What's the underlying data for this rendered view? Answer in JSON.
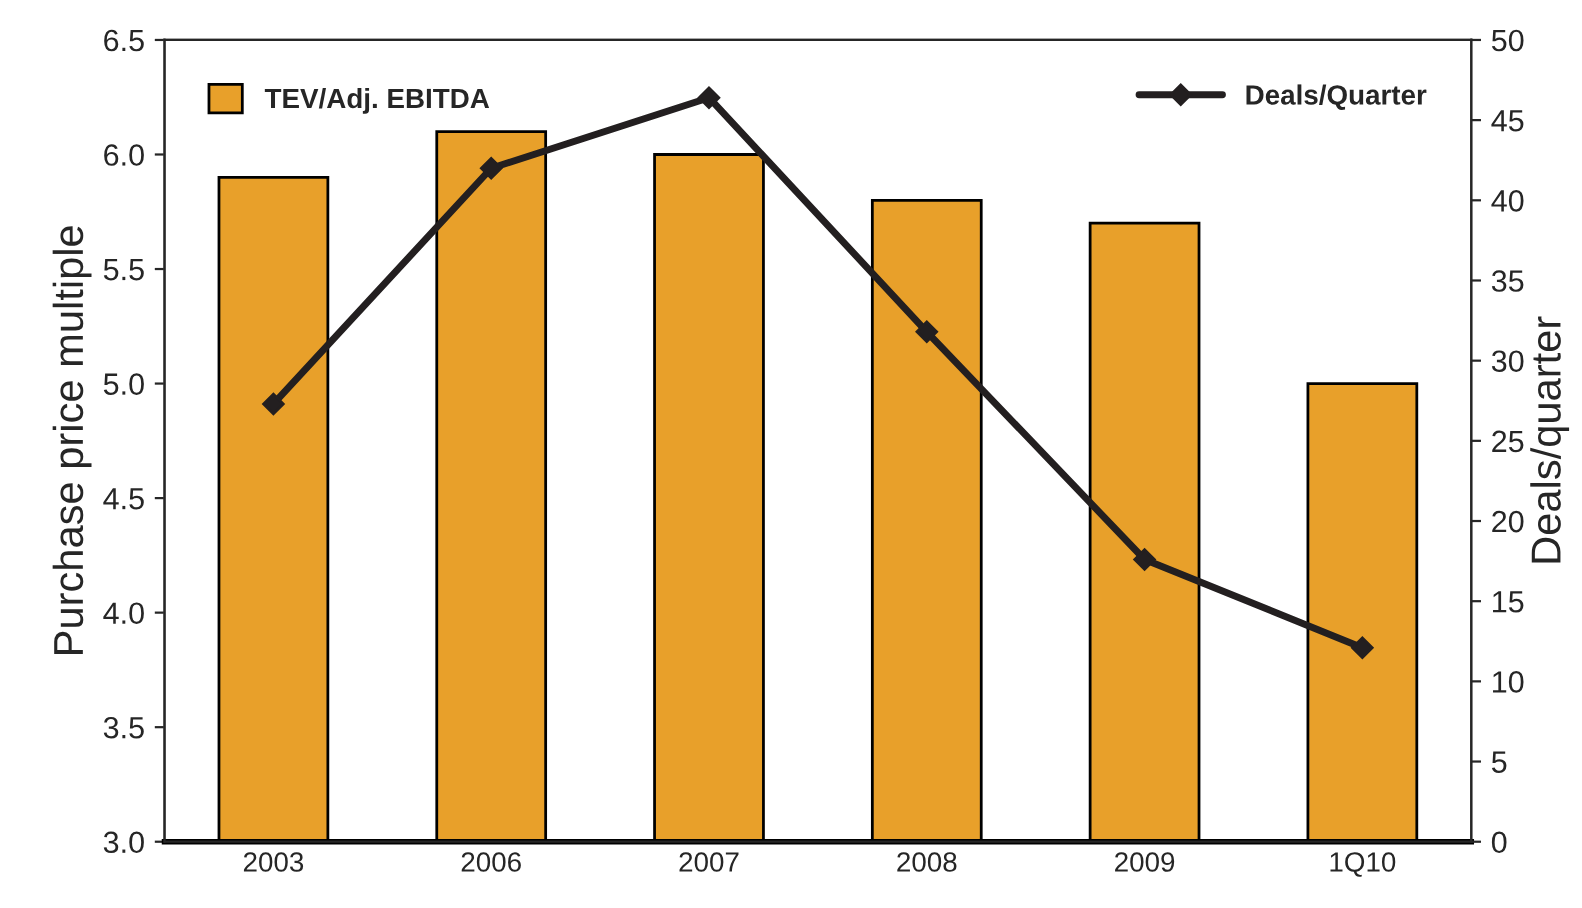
{
  "chart_data": {
    "type": "bar",
    "categories": [
      "2003",
      "2006",
      "2007",
      "2008",
      "2009",
      "1Q10"
    ],
    "ylabel": "Purchase price multiple",
    "y2label": "Deals/quarter",
    "ylim": [
      3.0,
      6.5
    ],
    "yticks": [
      {
        "value": 3.0,
        "label": "3.0"
      },
      {
        "value": 3.5,
        "label": "3.5"
      },
      {
        "value": 4.0,
        "label": "4.0"
      },
      {
        "value": 4.5,
        "label": "4.5"
      },
      {
        "value": 5.0,
        "label": "5.0"
      },
      {
        "value": 5.5,
        "label": "5.5"
      },
      {
        "value": 6.0,
        "label": "6.0"
      },
      {
        "value": 6.5,
        "label": "6.5"
      }
    ],
    "y2lim": [
      0,
      50
    ],
    "y2ticks": [
      0,
      5,
      10,
      15,
      20,
      25,
      30,
      35,
      40,
      45,
      50
    ],
    "series": [
      {
        "name": "TEV/Adj. EBITDA",
        "color": "#e8a02a",
        "values": [
          5.9,
          6.1,
          6.0,
          5.8,
          5.7,
          5.0
        ]
      },
      {
        "name": "Deals/Quarter",
        "type": "line",
        "axis": "y2",
        "color": "#231f20",
        "marker": "diamond",
        "line_style": "solid",
        "values": [
          27.3,
          42.0,
          46.4,
          31.8,
          17.6,
          12.1
        ]
      }
    ],
    "legend": "top",
    "grid": false
  }
}
